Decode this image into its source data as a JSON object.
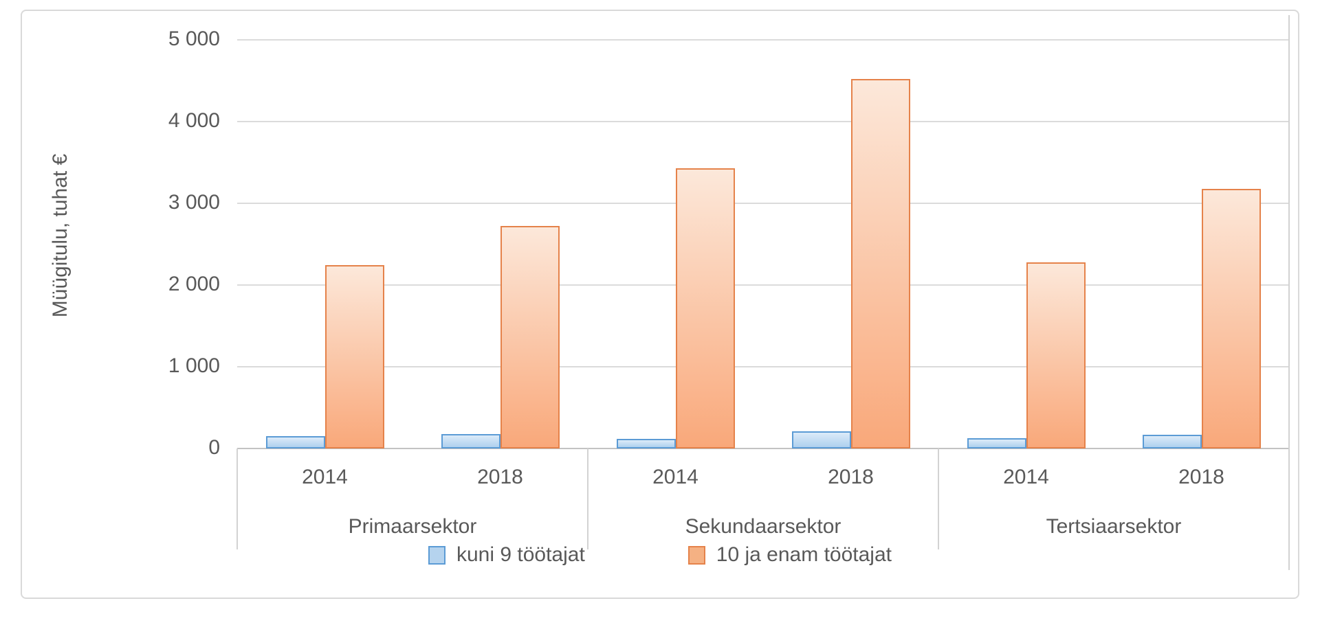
{
  "chart_data": {
    "type": "bar",
    "title": "",
    "ylabel": "Müügitulu, tuhat €",
    "xlabel": "",
    "ylim": [
      0,
      5000
    ],
    "ytick_step": 1000,
    "ytick_labels": [
      "0",
      "1 000",
      "2 000",
      "3 000",
      "4 000",
      "5 000"
    ],
    "grid": true,
    "legend_position": "bottom",
    "group_labels": [
      "Primaarsektor",
      "Sekundaarsektor",
      "Tertsiaarsektor"
    ],
    "x_labels_per_group": [
      "2014",
      "2018"
    ],
    "categories": [
      "Primaarsektor 2014",
      "Primaarsektor 2018",
      "Sekundaarsektor 2014",
      "Sekundaarsektor 2018",
      "Tertsiaarsektor 2014",
      "Tertsiaarsektor 2018"
    ],
    "series": [
      {
        "name": "kuni 9 töötajat",
        "values": [
          150,
          175,
          120,
          210,
          130,
          165
        ],
        "border_color": "#5b9bd5",
        "fill_top": "#dcebf9",
        "fill_bottom": "#aed0ee",
        "legend_fill": "#b5d3ee"
      },
      {
        "name": "10 ja enam töötajat",
        "values": [
          2240,
          2720,
          3430,
          4520,
          2280,
          3180
        ],
        "border_color": "#e5824a",
        "fill_top": "#fce8da",
        "fill_bottom": "#f9a87a",
        "legend_fill": "#f5b183"
      }
    ]
  }
}
